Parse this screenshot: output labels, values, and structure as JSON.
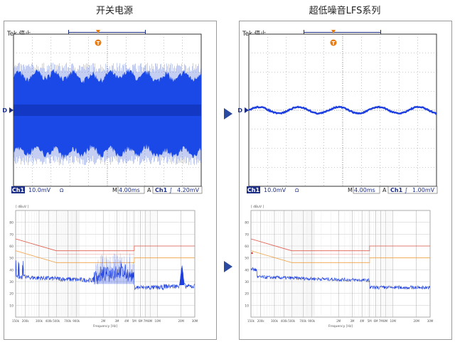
{
  "panels": [
    {
      "heading": "开关电源",
      "scope": {
        "status": "Tek 停止",
        "trigger_marker": "T",
        "ch1_tag": "Ch1",
        "ch1_scale": "10.0mV",
        "bw_symbol": "Ω",
        "timebase_prefix": "M",
        "timebase": "4.00ms",
        "trig_prefix": "A",
        "trig_ch": "Ch1",
        "trig_slope": "∫",
        "trig_level": "4.20mV",
        "ground_marker": "D"
      },
      "emi": {
        "unit": "[ dBuV ]",
        "y_ticks": [
          "80",
          "70",
          "60",
          "50",
          "40",
          "30",
          "20",
          "10"
        ],
        "x_ticks": [
          "150k",
          "200k",
          "300k",
          "400k",
          "500k",
          "700k",
          "900k",
          "2M",
          "3M",
          "4M",
          "5M",
          "6M",
          "7M",
          "8M",
          "10M",
          "20M",
          "30M"
        ],
        "xlabel": "Frequency [Hz]"
      }
    },
    {
      "heading": "超低噪音LFS系列",
      "scope": {
        "status": "Tek 停止",
        "trigger_marker": "T",
        "ch1_tag": "Ch1",
        "ch1_scale": "10.0mV",
        "bw_symbol": "Ω",
        "timebase_prefix": "M",
        "timebase": "4.00ms",
        "trig_prefix": "A",
        "trig_ch": "Ch1",
        "trig_slope": "∫",
        "trig_level": "1.00mV",
        "ground_marker": "D"
      },
      "emi": {
        "unit": "[ dBuV ]",
        "y_ticks": [
          "80",
          "70",
          "60",
          "50",
          "40",
          "30",
          "20",
          "10"
        ],
        "x_ticks": [
          "150k",
          "200k",
          "300k",
          "400k",
          "500k",
          "700k",
          "900k",
          "2M",
          "3M",
          "4M",
          "5M",
          "6M",
          "7M",
          "8M",
          "10M",
          "20M",
          "30M"
        ],
        "xlabel": "Frequency [Hz]"
      }
    }
  ],
  "colors": {
    "trace": "#1d3fe0",
    "band": "#1e50f0",
    "grid": "#c8c8c8",
    "limit_high": "#e05a4a",
    "limit_low": "#f0a040",
    "arrow": "#2b4aa0",
    "label_bg": "#1c2d86",
    "trigger_orange": "#e87a10"
  },
  "chart_data": [
    {
      "type": "line",
      "title": "开关电源",
      "series": [
        {
          "values_description_x_ms": [
            0,
            4,
            8,
            12,
            16,
            20,
            24,
            28,
            32,
            36,
            40
          ],
          "envelope_mv_top": [
            18,
            18,
            19,
            18,
            17,
            18,
            19,
            18,
            17,
            18,
            18
          ],
          "envelope_mv_bottom": [
            -22,
            -21,
            -22,
            -23,
            -21,
            -22,
            -22,
            -21,
            -23,
            -22,
            -22
          ]
        }
      ],
      "xlim_ms": [
        0,
        40
      ],
      "ylim_mv": [
        -40,
        40
      ]
    },
    {
      "type": "line",
      "title": "超低噪音LFS系列",
      "series": [
        {
          "x_ms": [
            0,
            4,
            8,
            12,
            16,
            20,
            24,
            28,
            32,
            36,
            40
          ],
          "y_mv": [
            0,
            -1,
            0,
            1,
            0,
            -1,
            0,
            1,
            0,
            -1,
            0
          ]
        }
      ],
      "xlim_ms": [
        0,
        40
      ],
      "ylim_mv": [
        -40,
        40
      ]
    }
  ]
}
